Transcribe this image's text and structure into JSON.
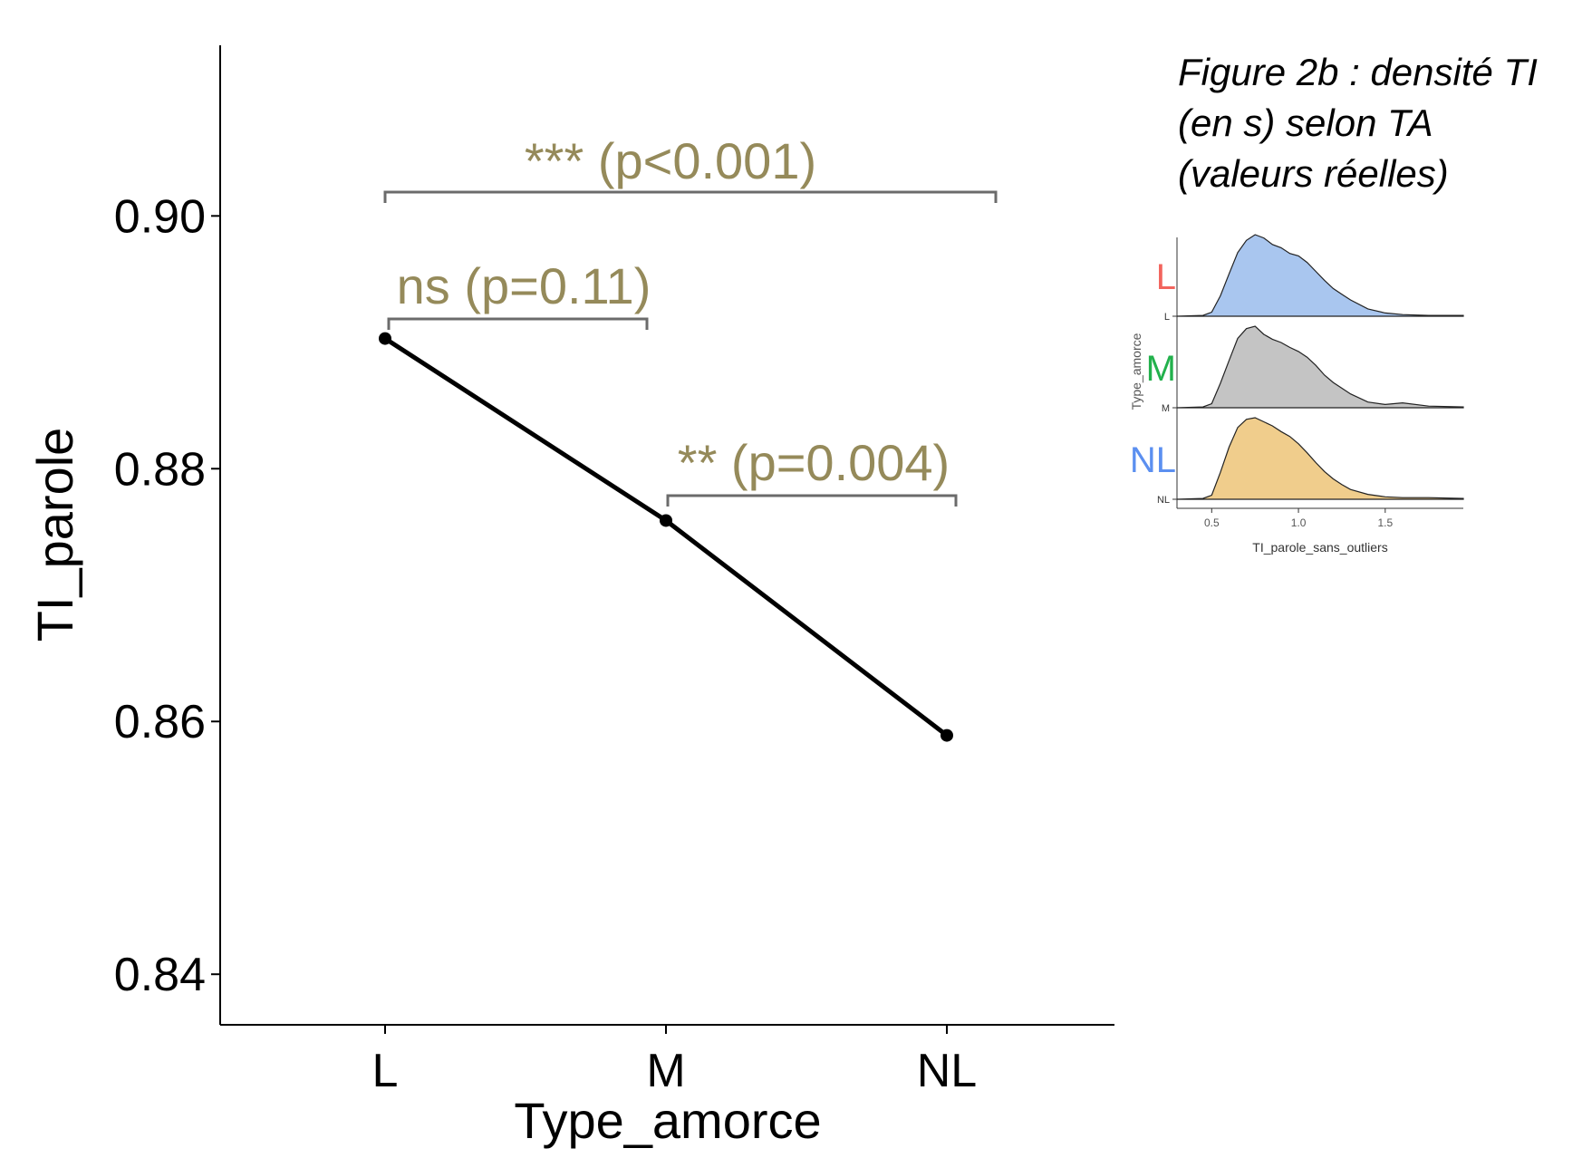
{
  "chart_data": [
    {
      "type": "line",
      "categories": [
        "L",
        "M",
        "NL"
      ],
      "values": [
        0.8903,
        0.8759,
        0.8589
      ],
      "xlabel": "Type_amorce",
      "ylabel": "TI_parole",
      "ylim": [
        0.836,
        0.9135
      ],
      "yticks": [
        "0.84",
        "0.86",
        "0.88",
        "0.90"
      ],
      "line_color": "#000000",
      "annotation_color": "#958a5a",
      "bracket_color": "#6b6b6b",
      "annotations": [
        {
          "label": "*** (p<0.001)",
          "from": "L",
          "to": "NL"
        },
        {
          "label": "ns (p=0.11)",
          "from": "L",
          "to": "M"
        },
        {
          "label": "** (p=0.004)",
          "from": "M",
          "to": "NL"
        }
      ],
      "grid": false
    },
    {
      "type": "area",
      "title_lines": [
        "Figure 2b : densité TI",
        "(en s) selon TA",
        "(valeurs réelles)"
      ],
      "xlabel": "TI_parole_sans_outliers",
      "ylabel": "Type_amorce",
      "xticks": [
        0.5,
        1.0,
        1.5
      ],
      "xtick_labels": [
        "0.5",
        "1.0",
        "1.5"
      ],
      "xlim": [
        0.3,
        1.95
      ],
      "big_labels": [
        {
          "text": "L",
          "color": "#f2645d"
        },
        {
          "text": "M",
          "color": "#22b14c"
        },
        {
          "text": "NL",
          "color": "#5b8ff0"
        }
      ],
      "series": [
        {
          "name": "L",
          "fill": "#a9c6ef",
          "x": [
            0.3,
            0.45,
            0.5,
            0.55,
            0.6,
            0.65,
            0.7,
            0.75,
            0.8,
            0.85,
            0.9,
            0.95,
            1.0,
            1.05,
            1.1,
            1.15,
            1.2,
            1.25,
            1.3,
            1.4,
            1.5,
            1.6,
            1.75,
            1.95
          ],
          "y": [
            0,
            0.01,
            0.05,
            0.25,
            0.52,
            0.78,
            0.93,
            1.0,
            0.96,
            0.88,
            0.84,
            0.77,
            0.74,
            0.66,
            0.55,
            0.44,
            0.34,
            0.27,
            0.2,
            0.09,
            0.04,
            0.02,
            0.01,
            0.01
          ]
        },
        {
          "name": "M",
          "fill": "#c4c4c4",
          "x": [
            0.3,
            0.45,
            0.5,
            0.55,
            0.6,
            0.65,
            0.7,
            0.75,
            0.8,
            0.85,
            0.9,
            0.95,
            1.0,
            1.05,
            1.1,
            1.15,
            1.2,
            1.25,
            1.3,
            1.4,
            1.5,
            1.6,
            1.75,
            1.95
          ],
          "y": [
            0,
            0.01,
            0.05,
            0.3,
            0.58,
            0.85,
            0.97,
            1.0,
            0.9,
            0.84,
            0.8,
            0.74,
            0.69,
            0.62,
            0.52,
            0.4,
            0.31,
            0.24,
            0.17,
            0.07,
            0.04,
            0.06,
            0.02,
            0.01
          ]
        },
        {
          "name": "NL",
          "fill": "#f0cd8c",
          "x": [
            0.3,
            0.45,
            0.5,
            0.55,
            0.6,
            0.65,
            0.7,
            0.75,
            0.8,
            0.85,
            0.9,
            0.95,
            1.0,
            1.05,
            1.1,
            1.15,
            1.2,
            1.25,
            1.3,
            1.4,
            1.5,
            1.6,
            1.75,
            1.95
          ],
          "y": [
            0,
            0.01,
            0.05,
            0.33,
            0.64,
            0.88,
            0.98,
            1.0,
            0.95,
            0.9,
            0.83,
            0.77,
            0.68,
            0.57,
            0.45,
            0.34,
            0.25,
            0.18,
            0.12,
            0.06,
            0.03,
            0.02,
            0.02,
            0.01
          ]
        }
      ]
    }
  ]
}
